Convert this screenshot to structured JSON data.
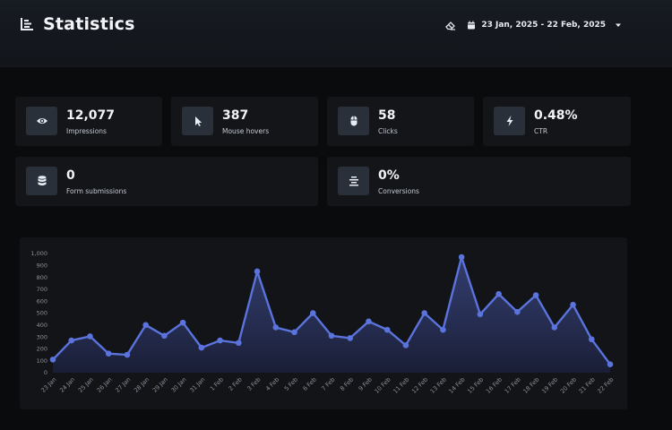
{
  "header": {
    "title": "Statistics",
    "date_range": "23 Jan, 2025 - 22 Feb, 2025",
    "icons": {
      "title": "chart-icon",
      "clear": "eraser-icon",
      "calendar": "calendar-icon",
      "dropdown": "chevron-down-icon"
    }
  },
  "stats": [
    {
      "value": "12,077",
      "label": "Impressions",
      "icon": "eye-icon"
    },
    {
      "value": "387",
      "label": "Mouse hovers",
      "icon": "cursor-icon"
    },
    {
      "value": "58",
      "label": "Clicks",
      "icon": "mouse-icon"
    },
    {
      "value": "0.48%",
      "label": "CTR",
      "icon": "bolt-icon"
    },
    {
      "value": "0",
      "label": "Form submissions",
      "icon": "database-icon"
    },
    {
      "value": "0%",
      "label": "Conversions",
      "icon": "align-center-icon"
    }
  ],
  "chart_data": {
    "type": "area",
    "categories": [
      "23 Jan",
      "24 Jan",
      "25 Jan",
      "26 Jan",
      "27 Jan",
      "28 Jan",
      "29 Jan",
      "30 Jan",
      "31 Jan",
      "1 Feb",
      "2 Feb",
      "3 Feb",
      "4 Feb",
      "5 Feb",
      "6 Feb",
      "7 Feb",
      "8 Feb",
      "9 Feb",
      "10 Feb",
      "11 Feb",
      "12 Feb",
      "13 Feb",
      "14 Feb",
      "15 Feb",
      "16 Feb",
      "17 Feb",
      "18 Feb",
      "19 Feb",
      "20 Feb",
      "21 Feb",
      "22 Feb"
    ],
    "values": [
      110,
      270,
      305,
      160,
      150,
      400,
      310,
      420,
      210,
      270,
      250,
      850,
      380,
      340,
      500,
      310,
      290,
      430,
      360,
      230,
      500,
      360,
      970,
      490,
      660,
      510,
      650,
      380,
      570,
      280,
      70
    ],
    "yticks": [
      "0",
      "100",
      "200",
      "300",
      "400",
      "500",
      "600",
      "700",
      "800",
      "900",
      "1,000"
    ],
    "ylim": [
      0,
      1000
    ],
    "grid": false,
    "colors": {
      "line": "#5b73dc",
      "fill_top": "#3d4a8a",
      "fill_bottom": "#1a1f38"
    }
  }
}
